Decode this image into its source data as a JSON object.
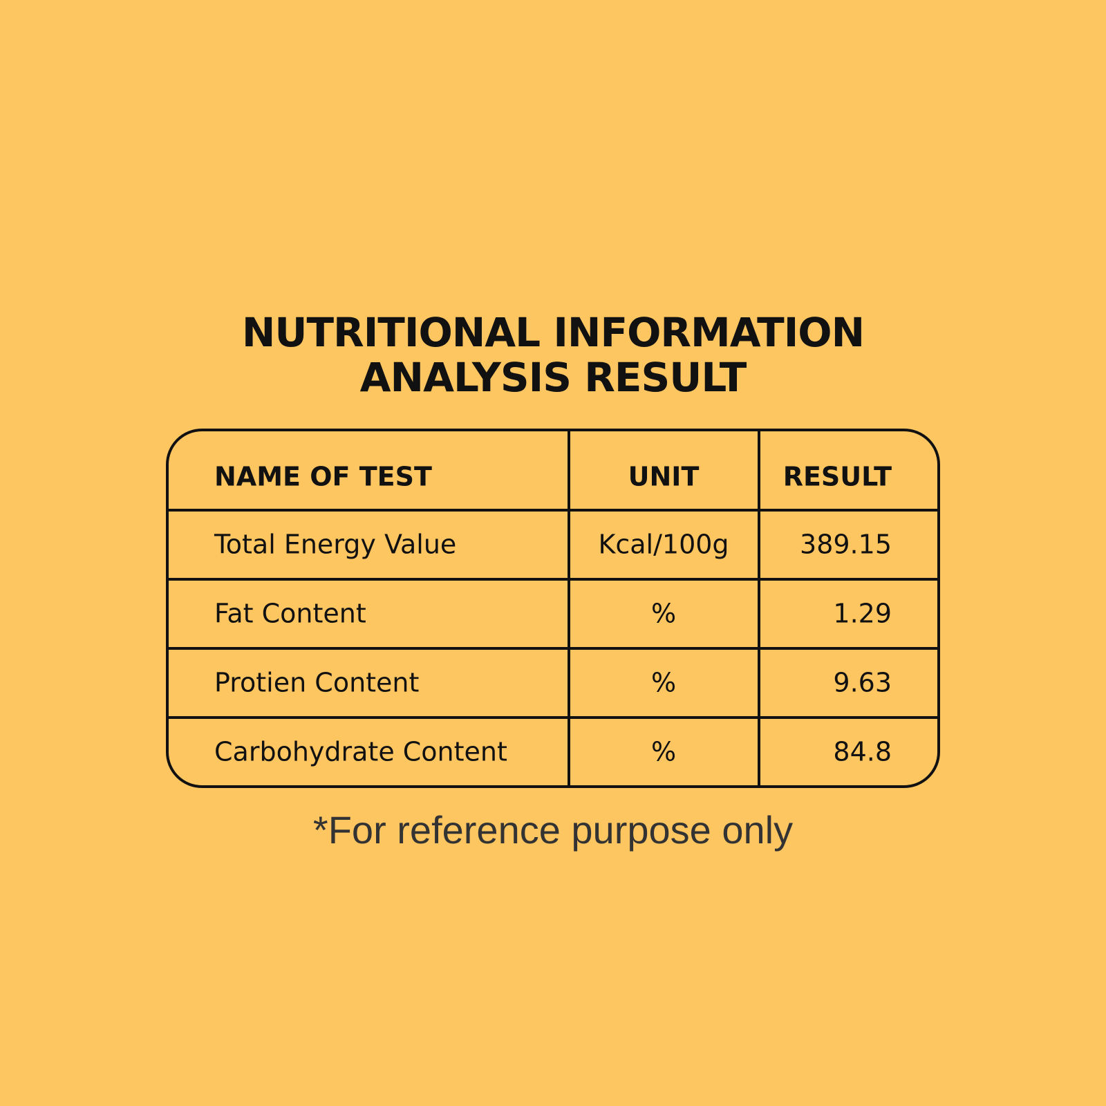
{
  "title": [
    "NUTRITIONAL INFORMATION",
    "ANALYSIS RESULT"
  ],
  "table": {
    "header": [
      "NAME OF TEST",
      "UNIT",
      "RESULT"
    ],
    "rows": [
      [
        "Total Energy Value",
        "Kcal/100g",
        "389.15"
      ],
      [
        "Fat Content",
        "%",
        "1.29"
      ],
      [
        "Protien Content",
        "%",
        "9.63"
      ],
      [
        "Carbohydrate Content",
        "%",
        "84.8"
      ]
    ]
  },
  "footnote": "*For reference purpose only"
}
